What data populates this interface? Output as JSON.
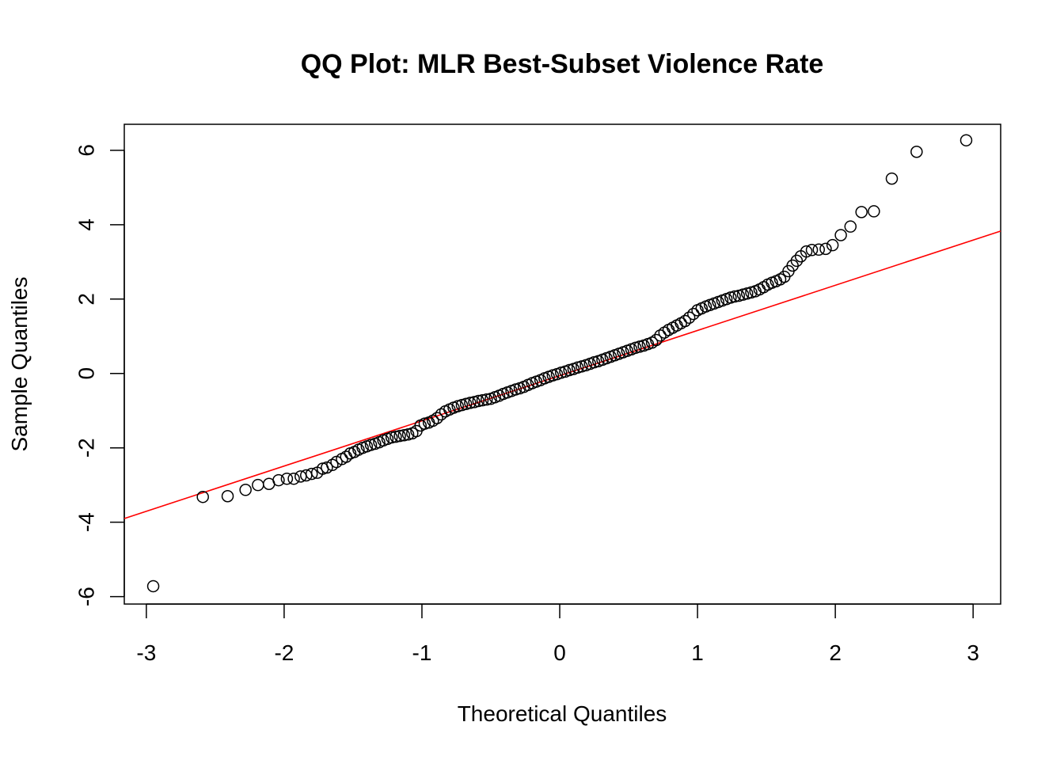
{
  "chart_data": {
    "type": "scatter",
    "title": "QQ Plot: MLR Best-Subset Violence Rate",
    "xlabel": "Theoretical Quantiles",
    "ylabel": "Sample Quantiles",
    "xlim": [
      -3.16,
      3.2
    ],
    "ylim": [
      -6.2,
      6.7
    ],
    "xticks": [
      -3,
      -2,
      -1,
      0,
      1,
      2,
      3
    ],
    "xtick_labels": [
      "-3",
      "-2",
      "-1",
      "0",
      "1",
      "2",
      "3"
    ],
    "yticks": [
      -6,
      -4,
      -2,
      0,
      2,
      4,
      6
    ],
    "ytick_labels": [
      "-6",
      "-4",
      "-2",
      "0",
      "2",
      "4",
      "6"
    ],
    "grid": false,
    "point_color": "#000000",
    "line_color": "#ff0000",
    "reference_line": {
      "name": "qqline",
      "x": [
        -3.16,
        3.2
      ],
      "y": [
        -3.9,
        3.83
      ]
    },
    "series": [
      {
        "name": "sample",
        "x": [
          -2.95,
          -2.59,
          -2.41,
          -2.28,
          -2.19,
          -2.11,
          -2.04,
          -1.98,
          -1.93,
          -1.88,
          -1.84,
          -1.8,
          -1.76,
          -1.72,
          -1.69,
          -1.65,
          -1.62,
          -1.58,
          -1.55,
          -1.52,
          -1.49,
          -1.46,
          -1.43,
          -1.4,
          -1.37,
          -1.34,
          -1.31,
          -1.28,
          -1.25,
          -1.22,
          -1.19,
          -1.16,
          -1.13,
          -1.1,
          -1.07,
          -1.04,
          -1.01,
          -0.98,
          -0.95,
          -0.92,
          -0.89,
          -0.86,
          -0.83,
          -0.8,
          -0.77,
          -0.74,
          -0.71,
          -0.68,
          -0.65,
          -0.62,
          -0.59,
          -0.56,
          -0.53,
          -0.5,
          -0.47,
          -0.44,
          -0.41,
          -0.38,
          -0.35,
          -0.32,
          -0.29,
          -0.26,
          -0.23,
          -0.2,
          -0.17,
          -0.14,
          -0.11,
          -0.08,
          -0.05,
          -0.02,
          0.01,
          0.04,
          0.07,
          0.1,
          0.13,
          0.16,
          0.19,
          0.22,
          0.25,
          0.28,
          0.31,
          0.34,
          0.37,
          0.4,
          0.43,
          0.46,
          0.49,
          0.52,
          0.55,
          0.58,
          0.61,
          0.64,
          0.67,
          0.7,
          0.73,
          0.76,
          0.79,
          0.82,
          0.85,
          0.88,
          0.91,
          0.94,
          0.97,
          1.0,
          1.03,
          1.06,
          1.09,
          1.12,
          1.15,
          1.18,
          1.21,
          1.24,
          1.27,
          1.3,
          1.33,
          1.36,
          1.39,
          1.42,
          1.45,
          1.48,
          1.51,
          1.54,
          1.57,
          1.6,
          1.63,
          1.66,
          1.69,
          1.72,
          1.75,
          1.79,
          1.83,
          1.88,
          1.93,
          1.98,
          2.04,
          2.11,
          2.19,
          2.28,
          2.41,
          2.59,
          2.95
        ],
        "y": [
          -5.72,
          -3.32,
          -3.3,
          -3.13,
          -3.0,
          -2.97,
          -2.87,
          -2.83,
          -2.83,
          -2.77,
          -2.74,
          -2.7,
          -2.67,
          -2.56,
          -2.53,
          -2.46,
          -2.38,
          -2.3,
          -2.24,
          -2.15,
          -2.11,
          -2.05,
          -2.0,
          -1.96,
          -1.92,
          -1.89,
          -1.85,
          -1.8,
          -1.76,
          -1.72,
          -1.7,
          -1.68,
          -1.66,
          -1.64,
          -1.61,
          -1.55,
          -1.4,
          -1.35,
          -1.32,
          -1.27,
          -1.2,
          -1.1,
          -1.02,
          -0.97,
          -0.92,
          -0.88,
          -0.85,
          -0.82,
          -0.79,
          -0.77,
          -0.74,
          -0.72,
          -0.7,
          -0.68,
          -0.64,
          -0.6,
          -0.55,
          -0.51,
          -0.47,
          -0.43,
          -0.4,
          -0.36,
          -0.31,
          -0.26,
          -0.22,
          -0.18,
          -0.13,
          -0.09,
          -0.05,
          -0.02,
          0.02,
          0.05,
          0.09,
          0.12,
          0.16,
          0.19,
          0.22,
          0.26,
          0.3,
          0.33,
          0.37,
          0.41,
          0.45,
          0.49,
          0.53,
          0.57,
          0.61,
          0.65,
          0.69,
          0.72,
          0.75,
          0.79,
          0.83,
          0.9,
          1.02,
          1.1,
          1.17,
          1.23,
          1.29,
          1.35,
          1.41,
          1.5,
          1.6,
          1.7,
          1.75,
          1.8,
          1.84,
          1.88,
          1.92,
          1.96,
          2.0,
          2.04,
          2.07,
          2.09,
          2.12,
          2.15,
          2.18,
          2.21,
          2.26,
          2.32,
          2.39,
          2.44,
          2.48,
          2.53,
          2.6,
          2.75,
          2.9,
          3.03,
          3.15,
          3.28,
          3.32,
          3.33,
          3.35,
          3.45,
          3.72,
          3.95,
          4.34,
          4.36,
          5.24,
          5.96,
          6.27
        ]
      }
    ]
  }
}
